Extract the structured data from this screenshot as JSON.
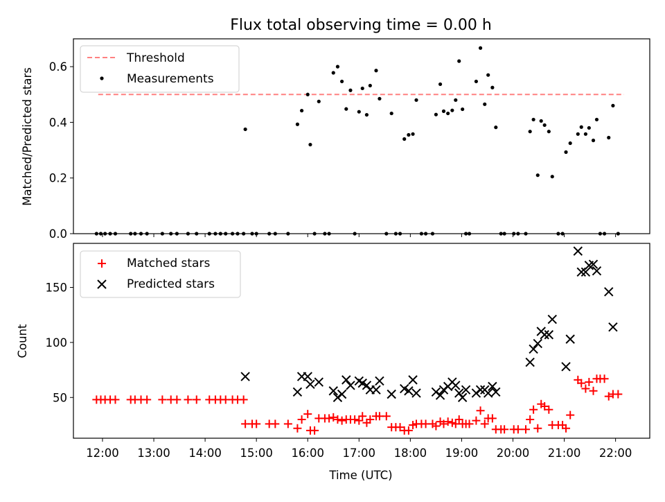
{
  "chart_data": [
    {
      "type": "scatter",
      "title": "Flux total observing time = 0.00 h",
      "ylabel": "Matched/Predicted stars",
      "xlabel": "",
      "ylim": [
        0,
        0.7
      ],
      "xlim": [
        "11:26",
        "22:40"
      ],
      "yticks": [
        0.0,
        0.2,
        0.4,
        0.6
      ],
      "ytick_labels": [
        "0.0",
        "0.2",
        "0.4",
        "0.6"
      ],
      "grid": false,
      "legend_position": "top-left",
      "threshold": {
        "name": "Threshold",
        "value": 0.5,
        "x_start": "11:55",
        "x_end": "22:10",
        "color": "#ff8080"
      },
      "series": [
        {
          "name": "Measurements",
          "color": "#000000",
          "marker": "dot",
          "points": [
            [
              "11:53",
              0
            ],
            [
              "11:58",
              0
            ],
            [
              "12:03",
              0
            ],
            [
              "12:09",
              0
            ],
            [
              "12:15",
              0
            ],
            [
              "12:33",
              0
            ],
            [
              "12:38",
              0
            ],
            [
              "12:45",
              0
            ],
            [
              "12:52",
              0
            ],
            [
              "13:10",
              0
            ],
            [
              "13:20",
              0
            ],
            [
              "13:27",
              0
            ],
            [
              "13:40",
              0
            ],
            [
              "13:50",
              0
            ],
            [
              "14:05",
              0
            ],
            [
              "14:12",
              0
            ],
            [
              "14:18",
              0
            ],
            [
              "14:24",
              0
            ],
            [
              "14:32",
              0
            ],
            [
              "14:38",
              0
            ],
            [
              "14:45",
              0
            ],
            [
              "14:47",
              0.375
            ],
            [
              "14:55",
              0
            ],
            [
              "15:00",
              0
            ],
            [
              "15:15",
              0
            ],
            [
              "15:22",
              0
            ],
            [
              "15:37",
              0
            ],
            [
              "15:48",
              0.393
            ],
            [
              "15:53",
              0.442
            ],
            [
              "16:00",
              0.5
            ],
            [
              "16:03",
              0.32
            ],
            [
              "16:08",
              0
            ],
            [
              "16:13",
              0.475
            ],
            [
              "16:20",
              0
            ],
            [
              "16:25",
              0
            ],
            [
              "16:30",
              0.578
            ],
            [
              "16:35",
              0.6
            ],
            [
              "16:40",
              0.547
            ],
            [
              "16:45",
              0.448
            ],
            [
              "16:50",
              0.515
            ],
            [
              "16:55",
              0
            ],
            [
              "17:00",
              0.438
            ],
            [
              "17:04",
              0.522
            ],
            [
              "17:09",
              0.427
            ],
            [
              "17:13",
              0.532
            ],
            [
              "17:20",
              0.586
            ],
            [
              "17:24",
              0.485
            ],
            [
              "17:32",
              0
            ],
            [
              "17:38",
              0.432
            ],
            [
              "17:43",
              0
            ],
            [
              "17:48",
              0
            ],
            [
              "17:53",
              0.34
            ],
            [
              "17:58",
              0.355
            ],
            [
              "18:03",
              0.358
            ],
            [
              "18:07",
              0.48
            ],
            [
              "18:13",
              0
            ],
            [
              "18:18",
              0
            ],
            [
              "18:26",
              0
            ],
            [
              "18:30",
              0.428
            ],
            [
              "18:35",
              0.537
            ],
            [
              "18:39",
              0.44
            ],
            [
              "18:44",
              0.432
            ],
            [
              "18:49",
              0.443
            ],
            [
              "18:53",
              0.48
            ],
            [
              "18:57",
              0.62
            ],
            [
              "19:01",
              0.447
            ],
            [
              "19:05",
              0
            ],
            [
              "19:09",
              0
            ],
            [
              "19:17",
              0.547
            ],
            [
              "19:22",
              0.667
            ],
            [
              "19:27",
              0.465
            ],
            [
              "19:31",
              0.57
            ],
            [
              "19:36",
              0.525
            ],
            [
              "19:40",
              0.382
            ],
            [
              "19:46",
              0
            ],
            [
              "19:50",
              0
            ],
            [
              "20:01",
              0
            ],
            [
              "20:06",
              0
            ],
            [
              "20:15",
              0
            ],
            [
              "20:20",
              0.367
            ],
            [
              "20:24",
              0.41
            ],
            [
              "20:29",
              0.21
            ],
            [
              "20:33",
              0.405
            ],
            [
              "20:37",
              0.39
            ],
            [
              "20:42",
              0.367
            ],
            [
              "20:46",
              0.205
            ],
            [
              "20:53",
              0
            ],
            [
              "20:58",
              0
            ],
            [
              "21:02",
              0.293
            ],
            [
              "21:07",
              0.325
            ],
            [
              "21:16",
              0.358
            ],
            [
              "21:20",
              0.383
            ],
            [
              "21:25",
              0.358
            ],
            [
              "21:29",
              0.38
            ],
            [
              "21:34",
              0.335
            ],
            [
              "21:38",
              0.41
            ],
            [
              "21:42",
              0
            ],
            [
              "21:47",
              0
            ],
            [
              "21:52",
              0.345
            ],
            [
              "21:57",
              0.46
            ],
            [
              "22:03",
              0
            ]
          ]
        }
      ]
    },
    {
      "type": "scatter",
      "title": "",
      "ylabel": "Count",
      "xlabel": "Time (UTC)",
      "ylim": [
        13,
        190
      ],
      "xlim": [
        "11:26",
        "22:40"
      ],
      "yticks": [
        50,
        100,
        150
      ],
      "ytick_labels": [
        "50",
        "100",
        "150"
      ],
      "xticks": [
        "12:00",
        "13:00",
        "14:00",
        "15:00",
        "16:00",
        "17:00",
        "18:00",
        "19:00",
        "20:00",
        "21:00",
        "22:00"
      ],
      "xtick_labels": [
        "12:00",
        "13:00",
        "14:00",
        "15:00",
        "16:00",
        "17:00",
        "18:00",
        "19:00",
        "20:00",
        "21:00",
        "22:00"
      ],
      "grid": false,
      "legend_position": "top-left",
      "series": [
        {
          "name": "Matched stars",
          "color": "#ff0000",
          "marker": "plus",
          "points": [
            [
              "11:53",
              48
            ],
            [
              "11:58",
              48
            ],
            [
              "12:03",
              48
            ],
            [
              "12:09",
              48
            ],
            [
              "12:15",
              48
            ],
            [
              "12:33",
              48
            ],
            [
              "12:38",
              48
            ],
            [
              "12:45",
              48
            ],
            [
              "12:52",
              48
            ],
            [
              "13:10",
              48
            ],
            [
              "13:20",
              48
            ],
            [
              "13:27",
              48
            ],
            [
              "13:40",
              48
            ],
            [
              "13:50",
              48
            ],
            [
              "14:05",
              48
            ],
            [
              "14:12",
              48
            ],
            [
              "14:18",
              48
            ],
            [
              "14:24",
              48
            ],
            [
              "14:32",
              48
            ],
            [
              "14:38",
              48
            ],
            [
              "14:45",
              48
            ],
            [
              "14:47",
              26
            ],
            [
              "14:55",
              26
            ],
            [
              "15:00",
              26
            ],
            [
              "15:15",
              26
            ],
            [
              "15:22",
              26
            ],
            [
              "15:37",
              26
            ],
            [
              "15:48",
              22
            ],
            [
              "15:53",
              30
            ],
            [
              "16:00",
              35
            ],
            [
              "16:03",
              20
            ],
            [
              "16:08",
              20
            ],
            [
              "16:13",
              31
            ],
            [
              "16:20",
              31
            ],
            [
              "16:25",
              31
            ],
            [
              "16:30",
              32
            ],
            [
              "16:35",
              30
            ],
            [
              "16:40",
              29
            ],
            [
              "16:45",
              30
            ],
            [
              "16:50",
              30
            ],
            [
              "16:55",
              30
            ],
            [
              "17:00",
              29
            ],
            [
              "17:04",
              33
            ],
            [
              "17:09",
              27
            ],
            [
              "17:13",
              30
            ],
            [
              "17:20",
              33
            ],
            [
              "17:24",
              33
            ],
            [
              "17:32",
              33
            ],
            [
              "17:38",
              23
            ],
            [
              "17:43",
              23
            ],
            [
              "17:48",
              23
            ],
            [
              "17:53",
              20
            ],
            [
              "17:58",
              20
            ],
            [
              "18:03",
              25
            ],
            [
              "18:07",
              26
            ],
            [
              "18:13",
              26
            ],
            [
              "18:18",
              26
            ],
            [
              "18:26",
              26
            ],
            [
              "18:30",
              24
            ],
            [
              "18:35",
              28
            ],
            [
              "18:39",
              26
            ],
            [
              "18:44",
              28
            ],
            [
              "18:49",
              27
            ],
            [
              "18:53",
              26
            ],
            [
              "18:57",
              30
            ],
            [
              "19:01",
              26
            ],
            [
              "19:05",
              26
            ],
            [
              "19:09",
              26
            ],
            [
              "19:17",
              29
            ],
            [
              "19:22",
              38
            ],
            [
              "19:27",
              26
            ],
            [
              "19:31",
              31
            ],
            [
              "19:36",
              31
            ],
            [
              "19:40",
              21
            ],
            [
              "19:46",
              21
            ],
            [
              "19:50",
              21
            ],
            [
              "20:01",
              21
            ],
            [
              "20:06",
              21
            ],
            [
              "20:15",
              21
            ],
            [
              "20:20",
              30
            ],
            [
              "20:24",
              39
            ],
            [
              "20:29",
              22
            ],
            [
              "20:33",
              44
            ],
            [
              "20:37",
              42
            ],
            [
              "20:42",
              39
            ],
            [
              "20:46",
              25
            ],
            [
              "20:53",
              25
            ],
            [
              "20:58",
              25
            ],
            [
              "21:02",
              22
            ],
            [
              "21:07",
              34
            ],
            [
              "21:16",
              66
            ],
            [
              "21:20",
              63
            ],
            [
              "21:25",
              58
            ],
            [
              "21:29",
              64
            ],
            [
              "21:34",
              56
            ],
            [
              "21:38",
              67
            ],
            [
              "21:42",
              67
            ],
            [
              "21:47",
              67
            ],
            [
              "21:52",
              51
            ],
            [
              "21:57",
              53
            ],
            [
              "22:03",
              53
            ]
          ]
        },
        {
          "name": "Predicted stars",
          "color": "#000000",
          "marker": "x",
          "points": [
            [
              "14:47",
              69
            ],
            [
              "15:48",
              55
            ],
            [
              "15:53",
              69
            ],
            [
              "16:00",
              69
            ],
            [
              "16:03",
              62
            ],
            [
              "16:13",
              64
            ],
            [
              "16:30",
              56
            ],
            [
              "16:35",
              50
            ],
            [
              "16:40",
              53
            ],
            [
              "16:45",
              66
            ],
            [
              "16:50",
              61
            ],
            [
              "17:00",
              65
            ],
            [
              "17:04",
              63
            ],
            [
              "17:09",
              61
            ],
            [
              "17:13",
              57
            ],
            [
              "17:20",
              57
            ],
            [
              "17:24",
              65
            ],
            [
              "17:38",
              53
            ],
            [
              "17:53",
              58
            ],
            [
              "17:58",
              56
            ],
            [
              "18:03",
              66
            ],
            [
              "18:07",
              54
            ],
            [
              "18:30",
              55
            ],
            [
              "18:35",
              52
            ],
            [
              "18:39",
              57
            ],
            [
              "18:44",
              60
            ],
            [
              "18:49",
              64
            ],
            [
              "18:53",
              61
            ],
            [
              "18:57",
              54
            ],
            [
              "19:01",
              50
            ],
            [
              "19:05",
              57
            ],
            [
              "19:17",
              54
            ],
            [
              "19:22",
              57
            ],
            [
              "19:27",
              57
            ],
            [
              "19:31",
              54
            ],
            [
              "19:36",
              60
            ],
            [
              "19:40",
              55
            ],
            [
              "20:20",
              82
            ],
            [
              "20:24",
              94
            ],
            [
              "20:29",
              99
            ],
            [
              "20:33",
              110
            ],
            [
              "20:37",
              107
            ],
            [
              "20:42",
              107
            ],
            [
              "20:46",
              121
            ],
            [
              "21:02",
              78
            ],
            [
              "21:07",
              103
            ],
            [
              "21:16",
              183
            ],
            [
              "21:20",
              164
            ],
            [
              "21:25",
              164
            ],
            [
              "21:29",
              170
            ],
            [
              "21:34",
              171
            ],
            [
              "21:38",
              165
            ],
            [
              "21:52",
              146
            ],
            [
              "21:57",
              114
            ]
          ]
        }
      ]
    }
  ]
}
